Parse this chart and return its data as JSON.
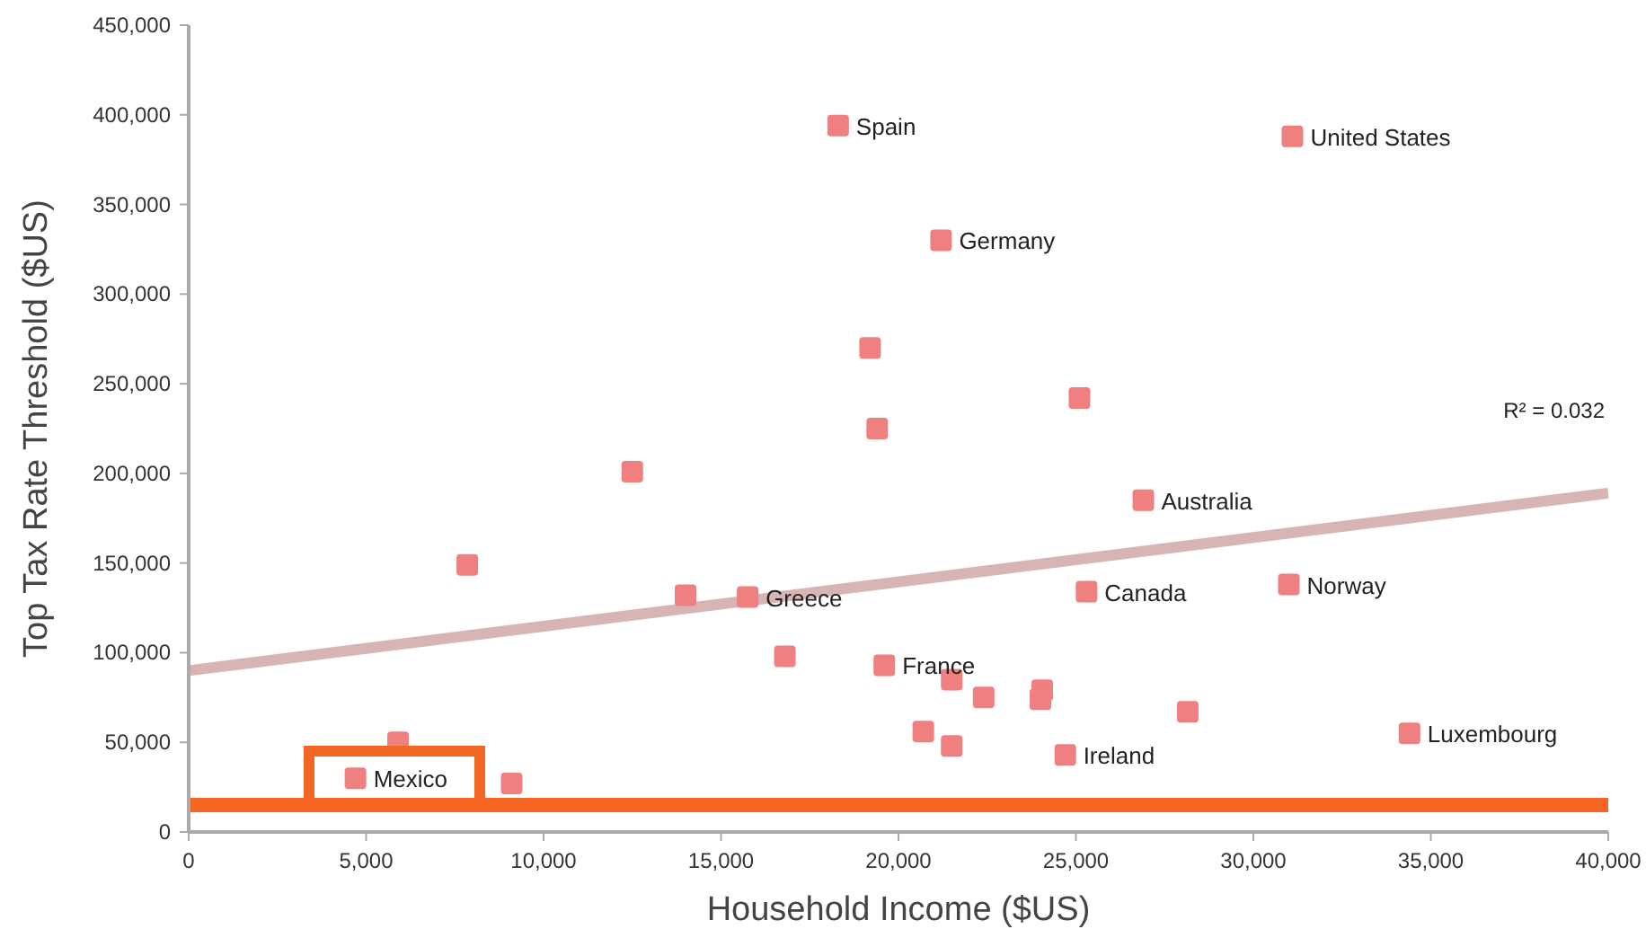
{
  "chart_data": {
    "type": "scatter",
    "xlabel": "Household Income ($US)",
    "ylabel": "Top Tax Rate Threshold ($US)",
    "xlim": [
      0,
      40000
    ],
    "xticks": [
      {
        "value": 0,
        "label": "0"
      },
      {
        "value": 5000,
        "label": "5,000"
      },
      {
        "value": 10000,
        "label": "10,000"
      },
      {
        "value": 15000,
        "label": "15,000"
      },
      {
        "value": 20000,
        "label": "20,000"
      },
      {
        "value": 25000,
        "label": "25,000"
      },
      {
        "value": 30000,
        "label": "30,000"
      },
      {
        "value": 35000,
        "label": "35,000"
      },
      {
        "value": 40000,
        "label": "40,000"
      }
    ],
    "ylim": [
      0,
      450000
    ],
    "yticks": [
      {
        "value": 0,
        "label": "0"
      },
      {
        "value": 50000,
        "label": "50,000"
      },
      {
        "value": 100000,
        "label": "100,000"
      },
      {
        "value": 150000,
        "label": "150,000"
      },
      {
        "value": 200000,
        "label": "200,000"
      },
      {
        "value": 250000,
        "label": "250,000"
      },
      {
        "value": 300000,
        "label": "300,000"
      },
      {
        "value": 350000,
        "label": "350,000"
      },
      {
        "value": 400000,
        "label": "400,000"
      },
      {
        "value": 450000,
        "label": "450,000"
      }
    ],
    "grid": false,
    "marker": "square",
    "series": [
      {
        "color": "#f07f80",
        "x": [
          18300,
          31100,
          21200,
          19200,
          19400,
          25100,
          12500,
          26900,
          7850,
          14000,
          15750,
          25300,
          31000,
          16800,
          19600,
          21500,
          22400,
          24050,
          24000,
          28150,
          20700,
          21500,
          24700,
          34400,
          5900,
          4700,
          9100
        ],
        "values": [
          394000,
          388000,
          330000,
          270000,
          225000,
          242000,
          201000,
          185000,
          149000,
          132000,
          131000,
          134000,
          138000,
          98000,
          93000,
          85000,
          75000,
          79000,
          74000,
          67000,
          56000,
          48000,
          43000,
          55000,
          50000,
          30000,
          27000
        ]
      },
      {
        "type": "line",
        "color": "#d8b4b4",
        "marker": "none",
        "x": [
          0,
          40000
        ],
        "values": [
          90000,
          189000
        ]
      }
    ],
    "ref_lines": [
      {
        "axis": "y",
        "value": 15000,
        "color": "#f26522"
      }
    ],
    "annotations": [
      {
        "text": "Spain",
        "x": 18300,
        "y": 394000
      },
      {
        "text": "United States",
        "x": 31100,
        "y": 388000
      },
      {
        "text": "Germany",
        "x": 21200,
        "y": 330000
      },
      {
        "text": "Australia",
        "x": 26900,
        "y": 185000
      },
      {
        "text": "Greece",
        "x": 15750,
        "y": 131000
      },
      {
        "text": "Canada",
        "x": 25300,
        "y": 134000
      },
      {
        "text": "Norway",
        "x": 31000,
        "y": 138000
      },
      {
        "text": "France",
        "x": 19600,
        "y": 93000
      },
      {
        "text": "Ireland",
        "x": 24700,
        "y": 43000
      },
      {
        "text": "Luxembourg",
        "x": 34400,
        "y": 55000
      },
      {
        "text": "Mexico",
        "x": 4700,
        "y": 30000
      },
      "R² = 0.032"
    ]
  }
}
